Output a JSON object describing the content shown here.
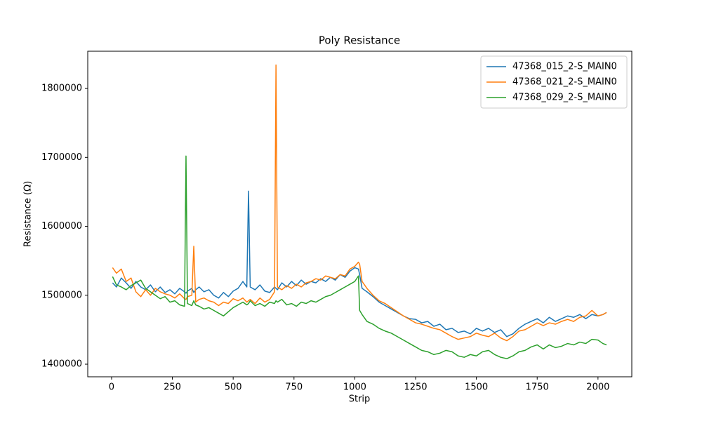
{
  "chart_data": {
    "type": "line",
    "title": "Poly Resistance",
    "x_label": "Strip",
    "y_label": "Resistance (Ω)",
    "x": [
      4,
      20,
      40,
      60,
      80,
      100,
      120,
      140,
      160,
      180,
      200,
      220,
      240,
      260,
      280,
      300,
      306,
      312,
      330,
      338,
      346,
      360,
      380,
      400,
      420,
      440,
      460,
      480,
      500,
      520,
      540,
      556,
      563,
      570,
      590,
      610,
      630,
      650,
      670,
      676,
      682,
      700,
      720,
      740,
      760,
      780,
      800,
      820,
      840,
      860,
      880,
      900,
      920,
      940,
      960,
      980,
      1000,
      1015,
      1020,
      1030,
      1050,
      1075,
      1100,
      1125,
      1150,
      1175,
      1200,
      1225,
      1250,
      1275,
      1300,
      1325,
      1350,
      1375,
      1400,
      1425,
      1450,
      1475,
      1500,
      1525,
      1550,
      1575,
      1600,
      1625,
      1650,
      1675,
      1700,
      1725,
      1750,
      1775,
      1800,
      1825,
      1850,
      1875,
      1900,
      1925,
      1950,
      1975,
      2000,
      2020,
      2035
    ],
    "series": [
      {
        "name": "47368_015_2-S_MAIN0",
        "color": "#1f77b4",
        "values": [
          1518000,
          1512000,
          1525000,
          1518000,
          1510000,
          1520000,
          1512000,
          1508000,
          1515000,
          1505000,
          1512000,
          1504000,
          1508000,
          1502000,
          1510000,
          1505000,
          1503000,
          1506000,
          1510000,
          1504000,
          1508000,
          1512000,
          1505000,
          1508000,
          1500000,
          1496000,
          1504000,
          1498000,
          1506000,
          1510000,
          1520000,
          1512000,
          1651000,
          1512000,
          1508000,
          1515000,
          1506000,
          1504000,
          1512000,
          1510000,
          1508000,
          1518000,
          1512000,
          1520000,
          1514000,
          1522000,
          1516000,
          1520000,
          1518000,
          1524000,
          1520000,
          1526000,
          1522000,
          1530000,
          1526000,
          1535000,
          1540000,
          1538000,
          1530000,
          1510000,
          1505000,
          1498000,
          1490000,
          1485000,
          1480000,
          1475000,
          1470000,
          1466000,
          1465000,
          1460000,
          1462000,
          1455000,
          1458000,
          1450000,
          1452000,
          1446000,
          1448000,
          1444000,
          1452000,
          1448000,
          1452000,
          1446000,
          1450000,
          1440000,
          1444000,
          1452000,
          1458000,
          1462000,
          1466000,
          1460000,
          1468000,
          1462000,
          1466000,
          1470000,
          1468000,
          1472000,
          1466000,
          1472000,
          1470000,
          1472000,
          1475000
        ]
      },
      {
        "name": "47368_021_2-S_MAIN0",
        "color": "#ff7f0e",
        "values": [
          1540000,
          1532000,
          1538000,
          1520000,
          1525000,
          1505000,
          1498000,
          1508000,
          1500000,
          1510000,
          1505000,
          1502000,
          1500000,
          1496000,
          1502000,
          1495000,
          1494000,
          1498000,
          1500000,
          1571000,
          1490000,
          1494000,
          1496000,
          1492000,
          1490000,
          1485000,
          1490000,
          1488000,
          1495000,
          1492000,
          1496000,
          1490000,
          1492000,
          1494000,
          1488000,
          1496000,
          1490000,
          1494000,
          1505000,
          1834000,
          1512000,
          1508000,
          1514000,
          1510000,
          1516000,
          1512000,
          1518000,
          1520000,
          1524000,
          1522000,
          1528000,
          1526000,
          1524000,
          1530000,
          1528000,
          1538000,
          1542000,
          1548000,
          1545000,
          1520000,
          1510000,
          1500000,
          1492000,
          1488000,
          1482000,
          1476000,
          1470000,
          1465000,
          1460000,
          1458000,
          1455000,
          1452000,
          1450000,
          1445000,
          1440000,
          1436000,
          1438000,
          1440000,
          1445000,
          1442000,
          1440000,
          1445000,
          1438000,
          1434000,
          1440000,
          1448000,
          1450000,
          1455000,
          1460000,
          1456000,
          1460000,
          1458000,
          1462000,
          1465000,
          1462000,
          1468000,
          1470000,
          1478000,
          1470000,
          1472000,
          1475000
        ]
      },
      {
        "name": "47368_029_2-S_MAIN0",
        "color": "#2ca02c",
        "values": [
          1527000,
          1515000,
          1512000,
          1508000,
          1514000,
          1518000,
          1522000,
          1510000,
          1505000,
          1500000,
          1495000,
          1498000,
          1490000,
          1492000,
          1486000,
          1484000,
          1702000,
          1488000,
          1485000,
          1492000,
          1486000,
          1484000,
          1480000,
          1482000,
          1478000,
          1474000,
          1470000,
          1476000,
          1482000,
          1486000,
          1490000,
          1486000,
          1488000,
          1492000,
          1485000,
          1488000,
          1484000,
          1490000,
          1488000,
          1492000,
          1490000,
          1494000,
          1486000,
          1488000,
          1484000,
          1490000,
          1488000,
          1492000,
          1490000,
          1494000,
          1498000,
          1500000,
          1504000,
          1508000,
          1512000,
          1516000,
          1520000,
          1528000,
          1478000,
          1472000,
          1462000,
          1458000,
          1452000,
          1448000,
          1445000,
          1440000,
          1435000,
          1430000,
          1425000,
          1420000,
          1418000,
          1414000,
          1416000,
          1420000,
          1418000,
          1412000,
          1410000,
          1414000,
          1412000,
          1418000,
          1420000,
          1414000,
          1410000,
          1408000,
          1412000,
          1418000,
          1420000,
          1425000,
          1428000,
          1422000,
          1428000,
          1424000,
          1426000,
          1430000,
          1428000,
          1432000,
          1430000,
          1436000,
          1435000,
          1430000,
          1428000
        ]
      }
    ],
    "xlim": [
      -98,
      2139
    ],
    "ylim": [
      1381700,
      1854000
    ],
    "xticks": [
      0,
      250,
      500,
      750,
      1000,
      1250,
      1500,
      1750,
      2000
    ],
    "yticks": [
      1400000,
      1500000,
      1600000,
      1700000,
      1800000
    ],
    "grid": false,
    "legend": "upper right"
  }
}
